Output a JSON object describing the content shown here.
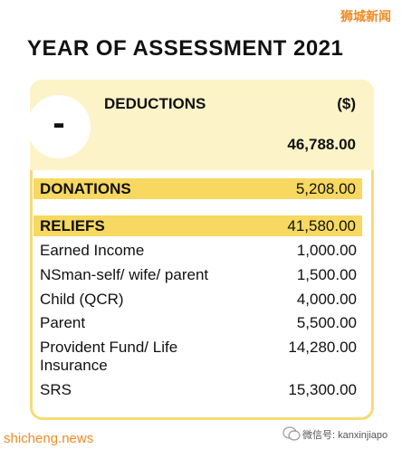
{
  "watermark": "狮城新闻",
  "title": "YEAR OF ASSESSMENT 2021",
  "badge": "-",
  "header": {
    "label": "DEDUCTIONS",
    "unit": "($)",
    "total": "46,788.00"
  },
  "sections": [
    {
      "label": "DONATIONS",
      "amount": "5,208.00"
    },
    {
      "label": "RELIEFS",
      "amount": "41,580.00"
    }
  ],
  "items": [
    {
      "label": "Earned Income",
      "amount": "1,000.00"
    },
    {
      "label": "NSman-self/ wife/ parent",
      "amount": "1,500.00"
    },
    {
      "label": "Child (QCR)",
      "amount": "4,000.00"
    },
    {
      "label": "Parent",
      "amount": "5,500.00"
    },
    {
      "label": "Provident Fund/ Life Insurance",
      "amount": "14,280.00"
    },
    {
      "label": "SRS",
      "amount": "15,300.00"
    }
  ],
  "footer": {
    "site": "shicheng.news",
    "wechat": "微信号: kanxinjiapo"
  }
}
